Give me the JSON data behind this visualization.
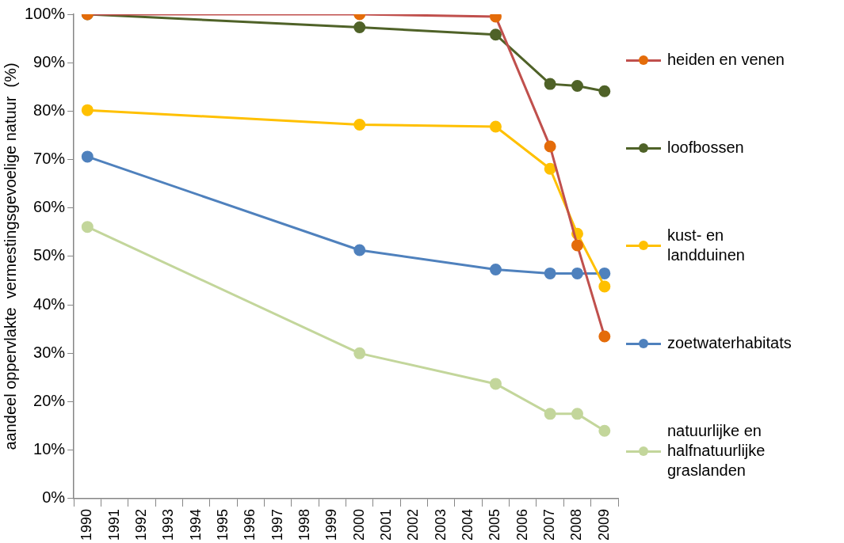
{
  "chart_data": {
    "type": "line",
    "ylabel": "aandeel oppervlakte  vermestingsgevoelige natuur  (%)",
    "categories": [
      "1990",
      "1991",
      "1992",
      "1993",
      "1994",
      "1995",
      "1996",
      "1997",
      "1998",
      "1999",
      "2000",
      "2001",
      "2002",
      "2003",
      "2004",
      "2005",
      "2006",
      "2007",
      "2008",
      "2009"
    ],
    "series": [
      {
        "name": "heiden en venen",
        "color": "#c0504d",
        "colors": [
          "#e46c0a",
          null,
          null,
          null,
          null,
          null,
          null,
          null,
          null,
          null,
          "#e46c0a",
          null,
          null,
          null,
          null,
          "#e46c0a",
          null,
          "#e46c0a",
          "#e46c0a",
          "#e46c0a"
        ],
        "values": [
          100,
          null,
          null,
          null,
          null,
          null,
          null,
          null,
          null,
          null,
          100,
          null,
          null,
          null,
          null,
          99.5,
          null,
          72.7,
          52.3,
          33.5
        ]
      },
      {
        "name": "loofbossen",
        "color": "#4f6228",
        "values": [
          100,
          null,
          null,
          null,
          null,
          null,
          null,
          null,
          null,
          null,
          97.3,
          null,
          null,
          null,
          null,
          95.8,
          null,
          85.6,
          85.2,
          84.1
        ]
      },
      {
        "name": "kust- en landduinen",
        "color": "#ffc000",
        "values": [
          80.2,
          null,
          null,
          null,
          null,
          null,
          null,
          null,
          null,
          null,
          77.2,
          null,
          null,
          null,
          null,
          76.8,
          null,
          68.1,
          54.7,
          43.8
        ]
      },
      {
        "name": "zoetwaterhabitats",
        "color": "#4f81bd",
        "values": [
          70.6,
          null,
          null,
          null,
          null,
          null,
          null,
          null,
          null,
          null,
          51.3,
          null,
          null,
          null,
          null,
          47.3,
          null,
          46.5,
          46.5,
          46.5
        ]
      },
      {
        "name": "natuurlijke en halfnatuurlijke graslanden",
        "color": "#c3d69b",
        "values": [
          56.1,
          null,
          null,
          null,
          null,
          null,
          null,
          null,
          null,
          null,
          30.0,
          null,
          null,
          null,
          null,
          23.7,
          null,
          17.5,
          17.5,
          14.0
        ]
      }
    ],
    "ylim": [
      0,
      100
    ],
    "yticks": [
      {
        "value": 0,
        "label": "0%"
      },
      {
        "value": 10,
        "label": "10%"
      },
      {
        "value": 20,
        "label": "20%"
      },
      {
        "value": 30,
        "label": "30%"
      },
      {
        "value": 40,
        "label": "40%"
      },
      {
        "value": 50,
        "label": "50%"
      },
      {
        "value": 60,
        "label": "60%"
      },
      {
        "value": 70,
        "label": "70%"
      },
      {
        "value": 80,
        "label": "80%"
      },
      {
        "value": 90,
        "label": "90%"
      },
      {
        "value": 100,
        "label": "100%"
      }
    ],
    "grid": false,
    "legend": "right",
    "marker": "circle",
    "line_style": "solid"
  }
}
